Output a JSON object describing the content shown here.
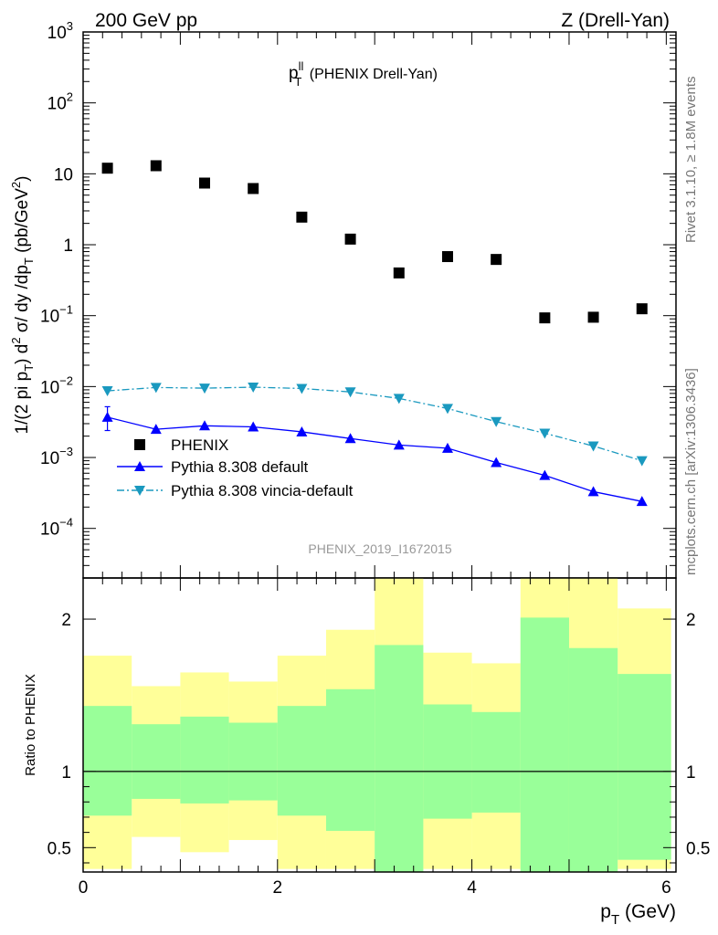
{
  "header": {
    "left": "200 GeV pp",
    "right": "Z (Drell-Yan)"
  },
  "side_labels": {
    "rivet": "Rivet 3.1.10, ≥ 1.8M events",
    "mcplots": "mcplots.cern.ch [arXiv:1306.3436]"
  },
  "chart_data": [
    {
      "type": "scatter",
      "title_main": "p",
      "title_sup": "ll",
      "title_sub": "T",
      "title_rest": " (PHENIX Drell-Yan)",
      "analysis_label": "PHENIX_2019_I1672015",
      "ylabel": "1/(2 pi p_T) d^2 σ/ dy /dp_T (pb/GeV^2)",
      "yscale": "log",
      "xlim": [
        0,
        6.1
      ],
      "ylim": [
        2e-05,
        1000
      ],
      "y_tick_labels": [
        {
          "v": 1000,
          "base": "10",
          "exp": "3"
        },
        {
          "v": 100,
          "base": "10",
          "exp": "2"
        },
        {
          "v": 10,
          "base": "10",
          "exp": ""
        },
        {
          "v": 1,
          "base": "1",
          "exp": ""
        },
        {
          "v": 0.1,
          "base": "10",
          "exp": "−1"
        },
        {
          "v": 0.01,
          "base": "10",
          "exp": "−2"
        },
        {
          "v": 0.001,
          "base": "10",
          "exp": "−3"
        },
        {
          "v": 0.0001,
          "base": "10",
          "exp": "−4"
        }
      ],
      "legend_position": "middle-left",
      "series": [
        {
          "name": "PHENIX",
          "style": "square",
          "color": "#000000",
          "x": [
            0.25,
            0.75,
            1.25,
            1.75,
            2.25,
            2.75,
            3.25,
            3.75,
            4.25,
            4.75,
            5.25,
            5.75
          ],
          "y": [
            12.0,
            13.0,
            7.4,
            6.2,
            2.45,
            1.2,
            0.4,
            0.68,
            0.62,
            0.093,
            0.095,
            0.125
          ]
        },
        {
          "name": "Pythia 8.308 default",
          "style": "solid-triangle-up",
          "color": "#0000ff",
          "x": [
            0.25,
            0.75,
            1.25,
            1.75,
            2.25,
            2.75,
            3.25,
            3.75,
            4.25,
            4.75,
            5.25,
            5.75
          ],
          "y": [
            0.0037,
            0.0025,
            0.0028,
            0.0027,
            0.0023,
            0.00185,
            0.0015,
            0.00135,
            0.00085,
            0.00056,
            0.00033,
            0.00024
          ],
          "yerr_first": [
            0.0024,
            0.0052
          ]
        },
        {
          "name": "Pythia 8.308 vincia-default",
          "style": "dashdot-triangle-down",
          "color": "#1a99bf",
          "x": [
            0.25,
            0.75,
            1.25,
            1.75,
            2.25,
            2.75,
            3.25,
            3.75,
            4.25,
            4.75,
            5.25,
            5.75
          ],
          "y": [
            0.0087,
            0.0097,
            0.0095,
            0.0098,
            0.0094,
            0.0084,
            0.0068,
            0.0049,
            0.0032,
            0.0022,
            0.00145,
            0.0009
          ]
        }
      ]
    },
    {
      "type": "area",
      "ylabel": "Ratio to PHENIX",
      "xlabel_main": "p",
      "xlabel_sub": "T",
      "xlabel_rest": " (GeV)",
      "xlim": [
        0,
        6.1
      ],
      "ylim": [
        0.34,
        2.27
      ],
      "x_ticks": [
        0,
        2,
        4,
        6
      ],
      "y_ticks": [
        0.5,
        1,
        2
      ],
      "reference_line": 1,
      "bins": [
        {
          "lo": 0.0,
          "hi": 0.5,
          "yellow": [
            0.36,
            1.76
          ],
          "green": [
            0.71,
            1.43
          ]
        },
        {
          "lo": 0.5,
          "hi": 1.0,
          "yellow": [
            0.57,
            1.56
          ],
          "green": [
            0.82,
            1.31
          ]
        },
        {
          "lo": 1.0,
          "hi": 1.5,
          "yellow": [
            0.47,
            1.65
          ],
          "green": [
            0.79,
            1.36
          ]
        },
        {
          "lo": 1.5,
          "hi": 2.0,
          "yellow": [
            0.55,
            1.59
          ],
          "green": [
            0.81,
            1.32
          ]
        },
        {
          "lo": 2.0,
          "hi": 2.5,
          "yellow": [
            0.36,
            1.76
          ],
          "green": [
            0.71,
            1.43
          ]
        },
        {
          "lo": 2.5,
          "hi": 3.0,
          "yellow": [
            0.36,
            1.93
          ],
          "green": [
            0.61,
            1.54
          ]
        },
        {
          "lo": 3.0,
          "hi": 3.5,
          "yellow": [
            0.34,
            2.27
          ],
          "green": [
            0.34,
            1.83
          ]
        },
        {
          "lo": 3.5,
          "hi": 4.0,
          "yellow": [
            0.36,
            1.78
          ],
          "green": [
            0.69,
            1.44
          ]
        },
        {
          "lo": 4.0,
          "hi": 4.5,
          "yellow": [
            0.36,
            1.71
          ],
          "green": [
            0.73,
            1.39
          ]
        },
        {
          "lo": 4.5,
          "hi": 5.0,
          "yellow": [
            0.34,
            2.27
          ],
          "green": [
            0.34,
            2.01
          ]
        },
        {
          "lo": 5.0,
          "hi": 5.5,
          "yellow": [
            0.34,
            2.27
          ],
          "green": [
            0.34,
            1.81
          ]
        },
        {
          "lo": 5.5,
          "hi": 6.05,
          "yellow": [
            0.36,
            2.07
          ],
          "green": [
            0.42,
            1.64
          ]
        }
      ]
    }
  ]
}
